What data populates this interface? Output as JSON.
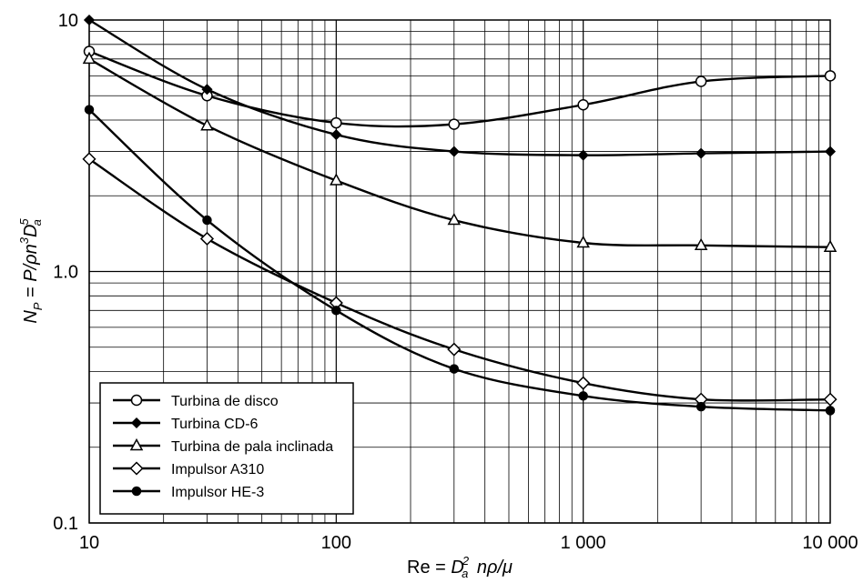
{
  "chart_data": {
    "type": "line",
    "x_scale": "log",
    "y_scale": "log",
    "xlim": [
      10,
      10000
    ],
    "ylim": [
      0.1,
      10
    ],
    "x_ticks": [
      10,
      100,
      1000,
      10000
    ],
    "x_tick_labels": [
      "10",
      "100",
      "1 000",
      "10 000"
    ],
    "y_ticks": [
      0.1,
      1,
      10
    ],
    "y_tick_labels": [
      "0.1",
      "1.0",
      "10"
    ],
    "xlabel": "Re = D_a^2 nρ/μ",
    "ylabel": "N_P = P/ρn^3 D_a^5",
    "grid": true,
    "legend_position": "bottom-left",
    "series": [
      {
        "name": "Turbina de disco",
        "marker": "open-circle",
        "x": [
          10,
          30,
          100,
          300,
          1000,
          3000,
          10000
        ],
        "y": [
          7.5,
          5.0,
          3.9,
          3.85,
          4.6,
          5.7,
          6.0
        ]
      },
      {
        "name": "Turbina CD-6",
        "marker": "filled-diamond",
        "x": [
          10,
          30,
          100,
          300,
          1000,
          3000,
          10000
        ],
        "y": [
          10,
          5.3,
          3.5,
          3.0,
          2.9,
          2.95,
          3.0
        ]
      },
      {
        "name": "Turbina de pala inclinada",
        "marker": "open-triangle",
        "x": [
          10,
          30,
          100,
          300,
          1000,
          3000,
          10000
        ],
        "y": [
          7.0,
          3.8,
          2.3,
          1.6,
          1.3,
          1.27,
          1.25
        ]
      },
      {
        "name": "Impulsor A310",
        "marker": "open-diamond",
        "x": [
          10,
          30,
          100,
          300,
          1000,
          3000,
          10000
        ],
        "y": [
          2.8,
          1.35,
          0.75,
          0.49,
          0.36,
          0.31,
          0.31
        ]
      },
      {
        "name": "Impulsor HE-3",
        "marker": "filled-circle",
        "x": [
          10,
          30,
          100,
          300,
          1000,
          3000,
          10000
        ],
        "y": [
          4.4,
          1.6,
          0.7,
          0.41,
          0.32,
          0.29,
          0.28
        ]
      }
    ]
  }
}
